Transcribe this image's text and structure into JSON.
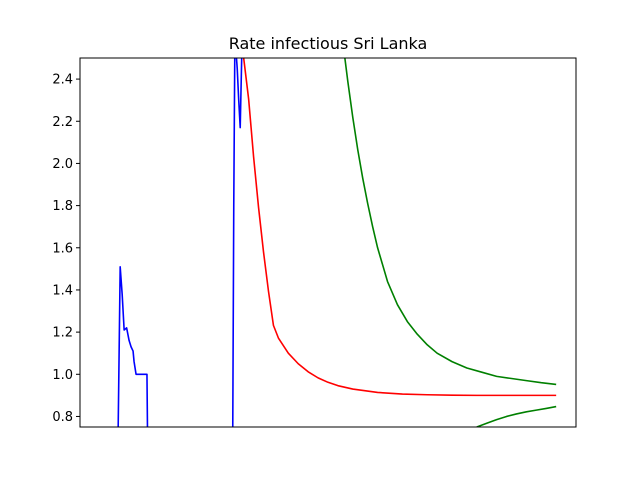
{
  "chart_data": {
    "type": "line",
    "title": "Rate infectious Sri Lanka",
    "xlabel": "",
    "ylabel": "",
    "ylim": [
      0.75,
      2.5
    ],
    "xlim": [
      0,
      100
    ],
    "grid": false,
    "x_ticks_visible": false,
    "y_ticks": [
      0.8,
      1.0,
      1.2,
      1.4,
      1.6,
      1.8,
      2.0,
      2.2,
      2.4
    ],
    "y_tick_labels": [
      "0.8",
      "1.0",
      "1.2",
      "1.4",
      "1.6",
      "1.8",
      "2.0",
      "2.2",
      "2.4"
    ],
    "series": [
      {
        "color": "#0000ff",
        "segments": [
          {
            "x": [
              7.7,
              8.1,
              8.5,
              8.9,
              9.4,
              9.9,
              10.3,
              10.7,
              10.9,
              11.3,
              11.7,
              12.1,
              12.5,
              13.0,
              13.5,
              13.6
            ],
            "y": [
              0.75,
              1.51,
              1.38,
              1.21,
              1.22,
              1.16,
              1.13,
              1.11,
              1.06,
              1.0,
              1.0,
              1.0,
              1.0,
              1.0,
              1.0,
              0.75
            ]
          },
          {
            "x": [
              30.8,
              31.0,
              31.2,
              31.4,
              31.7,
              32.0,
              32.3,
              32.6
            ],
            "y": [
              0.75,
              1.8,
              2.5,
              2.55,
              2.45,
              2.3,
              2.17,
              2.5
            ]
          }
        ]
      },
      {
        "color": "#ff0000",
        "segments": [
          {
            "x": [
              33.0,
              34,
              35,
              36,
              37,
              38,
              39,
              40,
              42,
              44,
              46,
              48,
              50,
              52,
              55,
              60,
              65,
              70,
              75,
              80,
              85,
              90,
              96
            ],
            "y": [
              2.5,
              2.305,
              2.031,
              1.791,
              1.58,
              1.394,
              1.232,
              1.172,
              1.1,
              1.05,
              1.012,
              0.983,
              0.962,
              0.946,
              0.93,
              0.914,
              0.906,
              0.903,
              0.901,
              0.9,
              0.9,
              0.9,
              0.9
            ]
          }
        ]
      },
      {
        "color": "#008000",
        "segments": [
          {
            "x": [
              53.4,
              54,
              55,
              56,
              57,
              58,
              59,
              60,
              62,
              64,
              66,
              68,
              70,
              72,
              75,
              78,
              81,
              84,
              87,
              90,
              93,
              96
            ],
            "y": [
              2.5,
              2.388,
              2.218,
              2.065,
              1.93,
              1.81,
              1.7,
              1.6,
              1.44,
              1.33,
              1.25,
              1.19,
              1.14,
              1.1,
              1.06,
              1.03,
              1.01,
              0.99,
              0.98,
              0.97,
              0.96,
              0.952
            ]
          },
          {
            "x": [
              80,
              82,
              84,
              86,
              88,
              90,
              92,
              94,
              96
            ],
            "y": [
              0.75,
              0.768,
              0.785,
              0.8,
              0.812,
              0.822,
              0.83,
              0.838,
              0.847
            ]
          }
        ]
      }
    ]
  }
}
